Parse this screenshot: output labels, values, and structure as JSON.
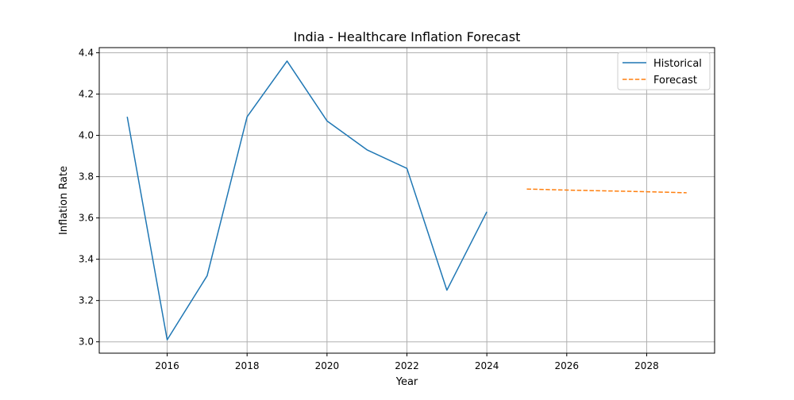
{
  "chart_data": {
    "type": "line",
    "title": "India - Healthcare Inflation Forecast",
    "xlabel": "Year",
    "ylabel": "Inflation Rate",
    "xlim": [
      2014.3,
      2029.7
    ],
    "ylim": [
      2.945,
      4.425
    ],
    "xticks": [
      2016,
      2018,
      2020,
      2022,
      2024,
      2026,
      2028
    ],
    "xtick_labels": [
      "2016",
      "2018",
      "2020",
      "2022",
      "2024",
      "2026",
      "2028"
    ],
    "yticks": [
      3.0,
      3.2,
      3.4,
      3.6,
      3.8,
      4.0,
      4.2,
      4.4
    ],
    "ytick_labels": [
      "3.0",
      "3.2",
      "3.4",
      "3.6",
      "3.8",
      "4.0",
      "4.2",
      "4.4"
    ],
    "grid": true,
    "legend_position": "top-right",
    "series": [
      {
        "name": "Historical",
        "color": "#1f77b4",
        "style": "solid",
        "x": [
          2015,
          2016,
          2017,
          2018,
          2019,
          2020,
          2021,
          2022,
          2023,
          2024
        ],
        "y": [
          4.09,
          3.01,
          3.32,
          4.09,
          4.36,
          4.07,
          3.93,
          3.84,
          3.25,
          3.63
        ]
      },
      {
        "name": "Forecast",
        "color": "#ff7f0e",
        "style": "dashed",
        "x": [
          2025,
          2026,
          2027,
          2028,
          2029
        ],
        "y": [
          3.74,
          3.735,
          3.731,
          3.727,
          3.722
        ]
      }
    ]
  }
}
